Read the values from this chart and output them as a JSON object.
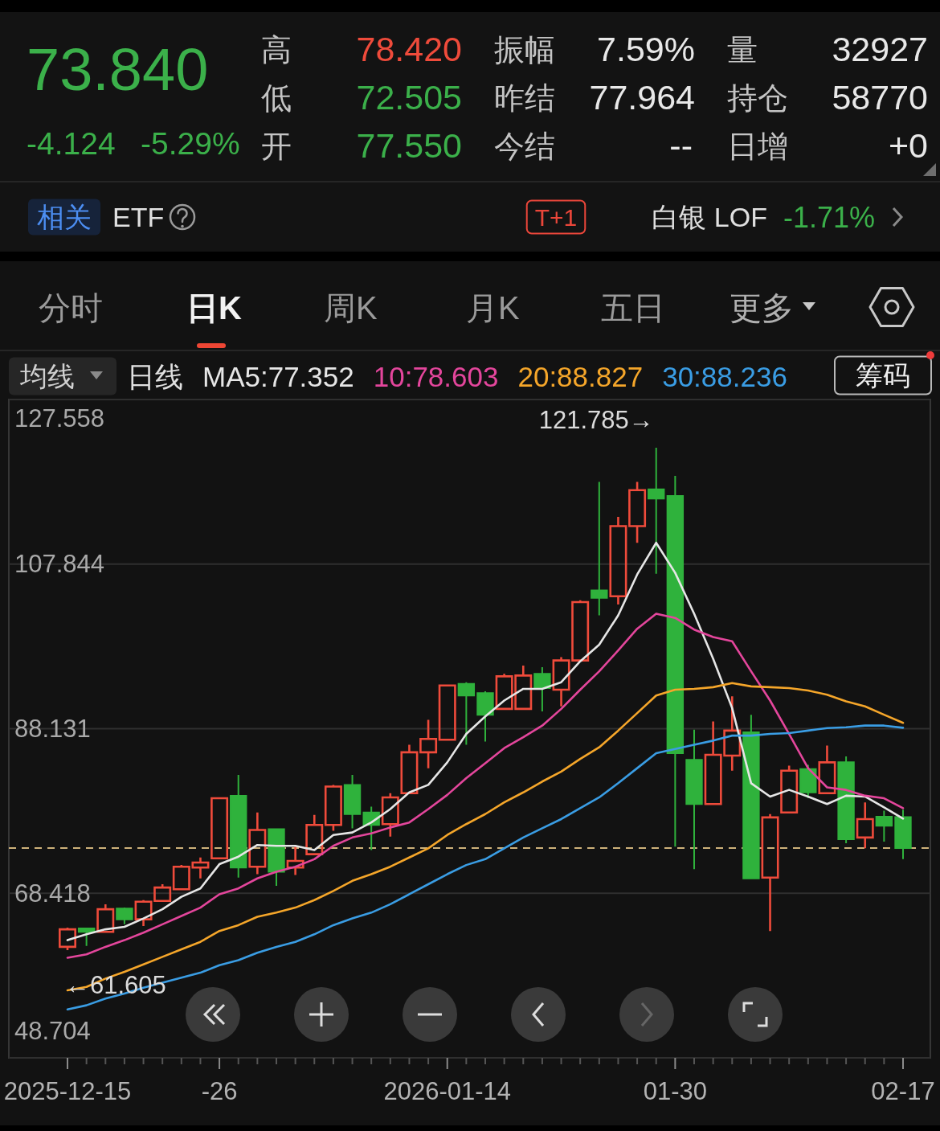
{
  "chart_data": {
    "type": "candlestick",
    "legend_title": "日线",
    "legend": "top",
    "grid": "y",
    "categories": [
      "2025-12-15",
      null,
      null,
      null,
      null,
      null,
      null,
      null,
      "-26",
      null,
      null,
      null,
      null,
      null,
      null,
      null,
      null,
      null,
      null,
      null,
      "2026-01-14",
      null,
      null,
      null,
      null,
      null,
      null,
      null,
      null,
      null,
      null,
      null,
      "01-30",
      null,
      null,
      null,
      null,
      null,
      null,
      null,
      null,
      null,
      null,
      null,
      "02-17"
    ],
    "ohlc": [
      [
        62.0,
        64.3,
        61.605,
        64.1
      ],
      [
        64.2,
        64.2,
        62.1,
        63.8
      ],
      [
        63.8,
        67.1,
        63.7,
        66.5
      ],
      [
        66.6,
        66.7,
        64.7,
        65.3
      ],
      [
        65.3,
        67.6,
        64.5,
        67.4
      ],
      [
        67.5,
        69.5,
        67.4,
        69.1
      ],
      [
        68.9,
        71.8,
        68.8,
        71.6
      ],
      [
        71.5,
        72.7,
        70.2,
        72.1
      ],
      [
        72.6,
        79.8,
        72.6,
        79.8
      ],
      [
        80.1,
        82.6,
        70.3,
        71.5
      ],
      [
        71.6,
        78.1,
        70.7,
        76.0
      ],
      [
        76.1,
        76.2,
        69.3,
        71.0
      ],
      [
        71.5,
        74.0,
        70.6,
        72.3
      ],
      [
        73.1,
        77.8,
        73.0,
        76.6
      ],
      [
        76.6,
        81.4,
        75.9,
        81.2
      ],
      [
        81.4,
        82.6,
        76.2,
        77.9
      ],
      [
        78.1,
        78.8,
        73.6,
        76.6
      ],
      [
        76.7,
        80.4,
        75.2,
        79.9
      ],
      [
        80.4,
        86.2,
        80.4,
        85.3
      ],
      [
        85.3,
        89.2,
        83.4,
        86.9
      ],
      [
        86.8,
        93.4,
        86.8,
        93.3
      ],
      [
        93.5,
        93.7,
        86.2,
        92.1
      ],
      [
        92.4,
        92.6,
        86.6,
        89.8
      ],
      [
        90.5,
        94.7,
        90.5,
        94.4
      ],
      [
        90.5,
        95.7,
        90.5,
        94.5
      ],
      [
        94.7,
        95.5,
        90.2,
        93.0
      ],
      [
        92.8,
        96.7,
        90.8,
        96.3
      ],
      [
        96.3,
        103.5,
        96.3,
        103.3
      ],
      [
        104.7,
        117.7,
        101.7,
        103.8
      ],
      [
        104.0,
        113.5,
        103.0,
        112.4
      ],
      [
        112.4,
        117.7,
        110.4,
        116.7
      ],
      [
        116.8,
        121.785,
        106.7,
        115.7
      ],
      [
        116.0,
        118.4,
        74.0,
        85.2
      ],
      [
        84.4,
        88.0,
        71.3,
        79.1
      ],
      [
        79.1,
        89.0,
        79.1,
        85.0
      ],
      [
        84.9,
        92.0,
        83.1,
        87.9
      ],
      [
        87.7,
        89.8,
        70.2,
        70.2
      ],
      [
        70.3,
        77.9,
        63.9,
        77.5
      ],
      [
        78.1,
        83.7,
        78.1,
        83.1
      ],
      [
        83.3,
        83.8,
        79.8,
        80.5
      ],
      [
        80.4,
        86.1,
        80.4,
        84.1
      ],
      [
        84.1,
        84.8,
        74.4,
        74.9
      ],
      [
        75.1,
        79.3,
        73.8,
        77.3
      ],
      [
        77.6,
        78.3,
        74.6,
        76.5
      ],
      [
        77.55,
        78.42,
        72.505,
        73.84
      ]
    ],
    "colors": [
      "#ef4b3b",
      "#2fb23c",
      "#ef4b3b",
      "#2fb23c",
      "#ef4b3b",
      "#ef4b3b",
      "#ef4b3b",
      "#ef4b3b",
      "#ef4b3b",
      "#2fb23c",
      "#ef4b3b",
      "#2fb23c",
      "#ef4b3b",
      "#ef4b3b",
      "#ef4b3b",
      "#2fb23c",
      "#2fb23c",
      "#ef4b3b",
      "#ef4b3b",
      "#ef4b3b",
      "#ef4b3b",
      "#2fb23c",
      "#2fb23c",
      "#ef4b3b",
      "#ef4b3b",
      "#2fb23c",
      "#ef4b3b",
      "#ef4b3b",
      "#2fb23c",
      "#ef4b3b",
      "#ef4b3b",
      "#2fb23c",
      "#2fb23c",
      "#2fb23c",
      "#ef4b3b",
      "#ef4b3b",
      "#2fb23c",
      "#ef4b3b",
      "#ef4b3b",
      "#2fb23c",
      "#ef4b3b",
      "#2fb23c",
      "#ef4b3b",
      "#2fb23c",
      "#2fb23c"
    ],
    "series": [
      {
        "name": "MA5:77.352",
        "type": "line",
        "color": "#e6e6e6",
        "values": [
          62.8,
          63.5,
          64.1,
          64.4,
          65.4,
          66.5,
          68.0,
          69.0,
          71.9,
          72.8,
          74.2,
          74.1,
          74.1,
          73.6,
          75.4,
          75.7,
          76.9,
          78.5,
          80.5,
          81.4,
          84.1,
          87.5,
          89.6,
          91.5,
          92.9,
          92.9,
          93.7,
          96.2,
          98.2,
          101.7,
          106.6,
          110.4,
          106.8,
          101.9,
          96.5,
          90.6,
          81.6,
          80.0,
          80.8,
          80.0,
          79.1,
          80.1,
          80.0,
          78.7,
          77.352
        ]
      },
      {
        "name": "10:78.603",
        "type": "line",
        "color": "#e4469c",
        "values": [
          60.7,
          61.1,
          62.0,
          62.8,
          63.7,
          64.7,
          65.7,
          66.7,
          68.3,
          69.0,
          70.2,
          71.0,
          71.6,
          72.5,
          74.1,
          75.1,
          75.6,
          76.3,
          76.9,
          78.5,
          80.2,
          82.2,
          84.0,
          85.8,
          87.1,
          88.5,
          90.5,
          92.8,
          95.0,
          97.5,
          100.1,
          101.9,
          101.4,
          100.0,
          99.1,
          98.6,
          95.0,
          91.5,
          87.5,
          83.4,
          81.1,
          80.8,
          80.1,
          79.8,
          78.603
        ]
      },
      {
        "name": "20:88.827",
        "type": "line",
        "color": "#f5a62a",
        "values": [
          56.8,
          57.2,
          58.2,
          59.0,
          59.9,
          60.8,
          61.7,
          62.6,
          63.9,
          64.6,
          65.6,
          66.1,
          66.7,
          67.6,
          68.7,
          69.9,
          70.7,
          71.6,
          72.7,
          73.8,
          75.4,
          76.7,
          77.9,
          79.3,
          80.5,
          81.8,
          83.0,
          84.5,
          85.9,
          87.9,
          90.0,
          92.1,
          92.8,
          92.9,
          93.1,
          93.6,
          93.2,
          93.1,
          93.0,
          92.7,
          92.2,
          91.4,
          90.8,
          89.8,
          88.827
        ]
      },
      {
        "name": "30:88.236",
        "type": "line",
        "color": "#3a9de4",
        "values": [
          54.5,
          55.0,
          55.8,
          56.4,
          57.1,
          57.7,
          58.3,
          58.9,
          59.8,
          60.4,
          61.3,
          62.0,
          62.6,
          63.5,
          64.6,
          65.4,
          66.1,
          67.1,
          68.3,
          69.5,
          70.7,
          71.8,
          72.5,
          73.8,
          75.1,
          76.2,
          77.3,
          78.6,
          79.9,
          81.6,
          83.4,
          85.2,
          85.7,
          86.2,
          86.7,
          87.3,
          87.3,
          87.5,
          87.6,
          87.9,
          88.2,
          88.3,
          88.5,
          88.5,
          88.236
        ]
      }
    ],
    "ylim": [
      48.704,
      127.558
    ],
    "yticks": [
      127.558,
      107.844,
      88.131,
      68.418,
      48.704
    ],
    "ref_lines": [
      {
        "axis": "y",
        "value": 73.84,
        "color": "#cfb27a",
        "line_style": "dashed"
      }
    ],
    "annotations": [
      "73.840",
      "-4.124",
      "-5.29%",
      "高",
      "78.420",
      "低",
      "72.505",
      "开",
      "77.550",
      "振幅",
      "7.59%",
      "昨结",
      "77.964",
      "今结",
      "--",
      "量",
      "32927",
      "持仓",
      "58770",
      "日增",
      "+0",
      "相关",
      "ETF",
      "T+1",
      "白银 LOF",
      "-1.71%",
      "分时",
      "日K",
      "周K",
      "月K",
      "五日",
      "更多",
      "均线",
      "筹码",
      "121.785→",
      "←61.605"
    ]
  }
}
